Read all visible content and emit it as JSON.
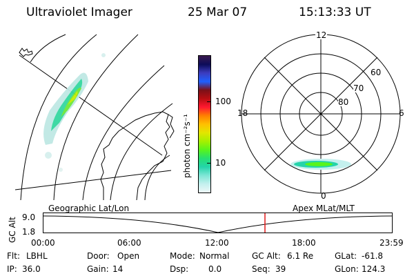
{
  "header": {
    "title": "Ultraviolet Imager",
    "date": "25 Mar 07",
    "time": "15:13:33 UT"
  },
  "colorbar": {
    "unit_label": "photon cm⁻²s⁻¹",
    "ticks": [
      "100",
      "10"
    ],
    "colors": [
      "#3a1a4e",
      "#0c0c5a",
      "#3c3cbe",
      "#1e60ff",
      "#7a1018",
      "#b80e12",
      "#ff1830",
      "#ff8000",
      "#ffc000",
      "#e2e600",
      "#a6f000",
      "#58f41c",
      "#26e070",
      "#24d4aa",
      "#7ee6d6",
      "#c4f0ee",
      "#eef8f8"
    ]
  },
  "polar": {
    "mlt_labels": {
      "top": "12",
      "left": "18",
      "right": "6",
      "bottom": "0"
    },
    "lat_labels": [
      "60",
      "70",
      "80"
    ]
  },
  "timeline": {
    "left_label": "Geographic Lat/Lon",
    "right_label": "Apex MLat/MLT",
    "axis_title": "GC Alt",
    "y_ticks": [
      "9.0",
      "1.8"
    ],
    "x_ticks": [
      "00:00",
      "06:00",
      "12:00",
      "18:00",
      "23:59"
    ],
    "marker_color": "#e01818"
  },
  "info": [
    {
      "label": "Flt:",
      "value": "LBHL"
    },
    {
      "label": "Door:",
      "value": "Open"
    },
    {
      "label": "Mode:",
      "value": "Normal"
    },
    {
      "label": "GC Alt:",
      "value": "6.1 Re"
    },
    {
      "label": "GLat:",
      "value": "-61.8"
    },
    {
      "label": "IP:",
      "value": "36.0"
    },
    {
      "label": "Gain:",
      "value": "14"
    },
    {
      "label": "Dsp:",
      "value": "0.0"
    },
    {
      "label": "Seq:",
      "value": "39"
    },
    {
      "label": "GLon:",
      "value": "124.3"
    }
  ]
}
